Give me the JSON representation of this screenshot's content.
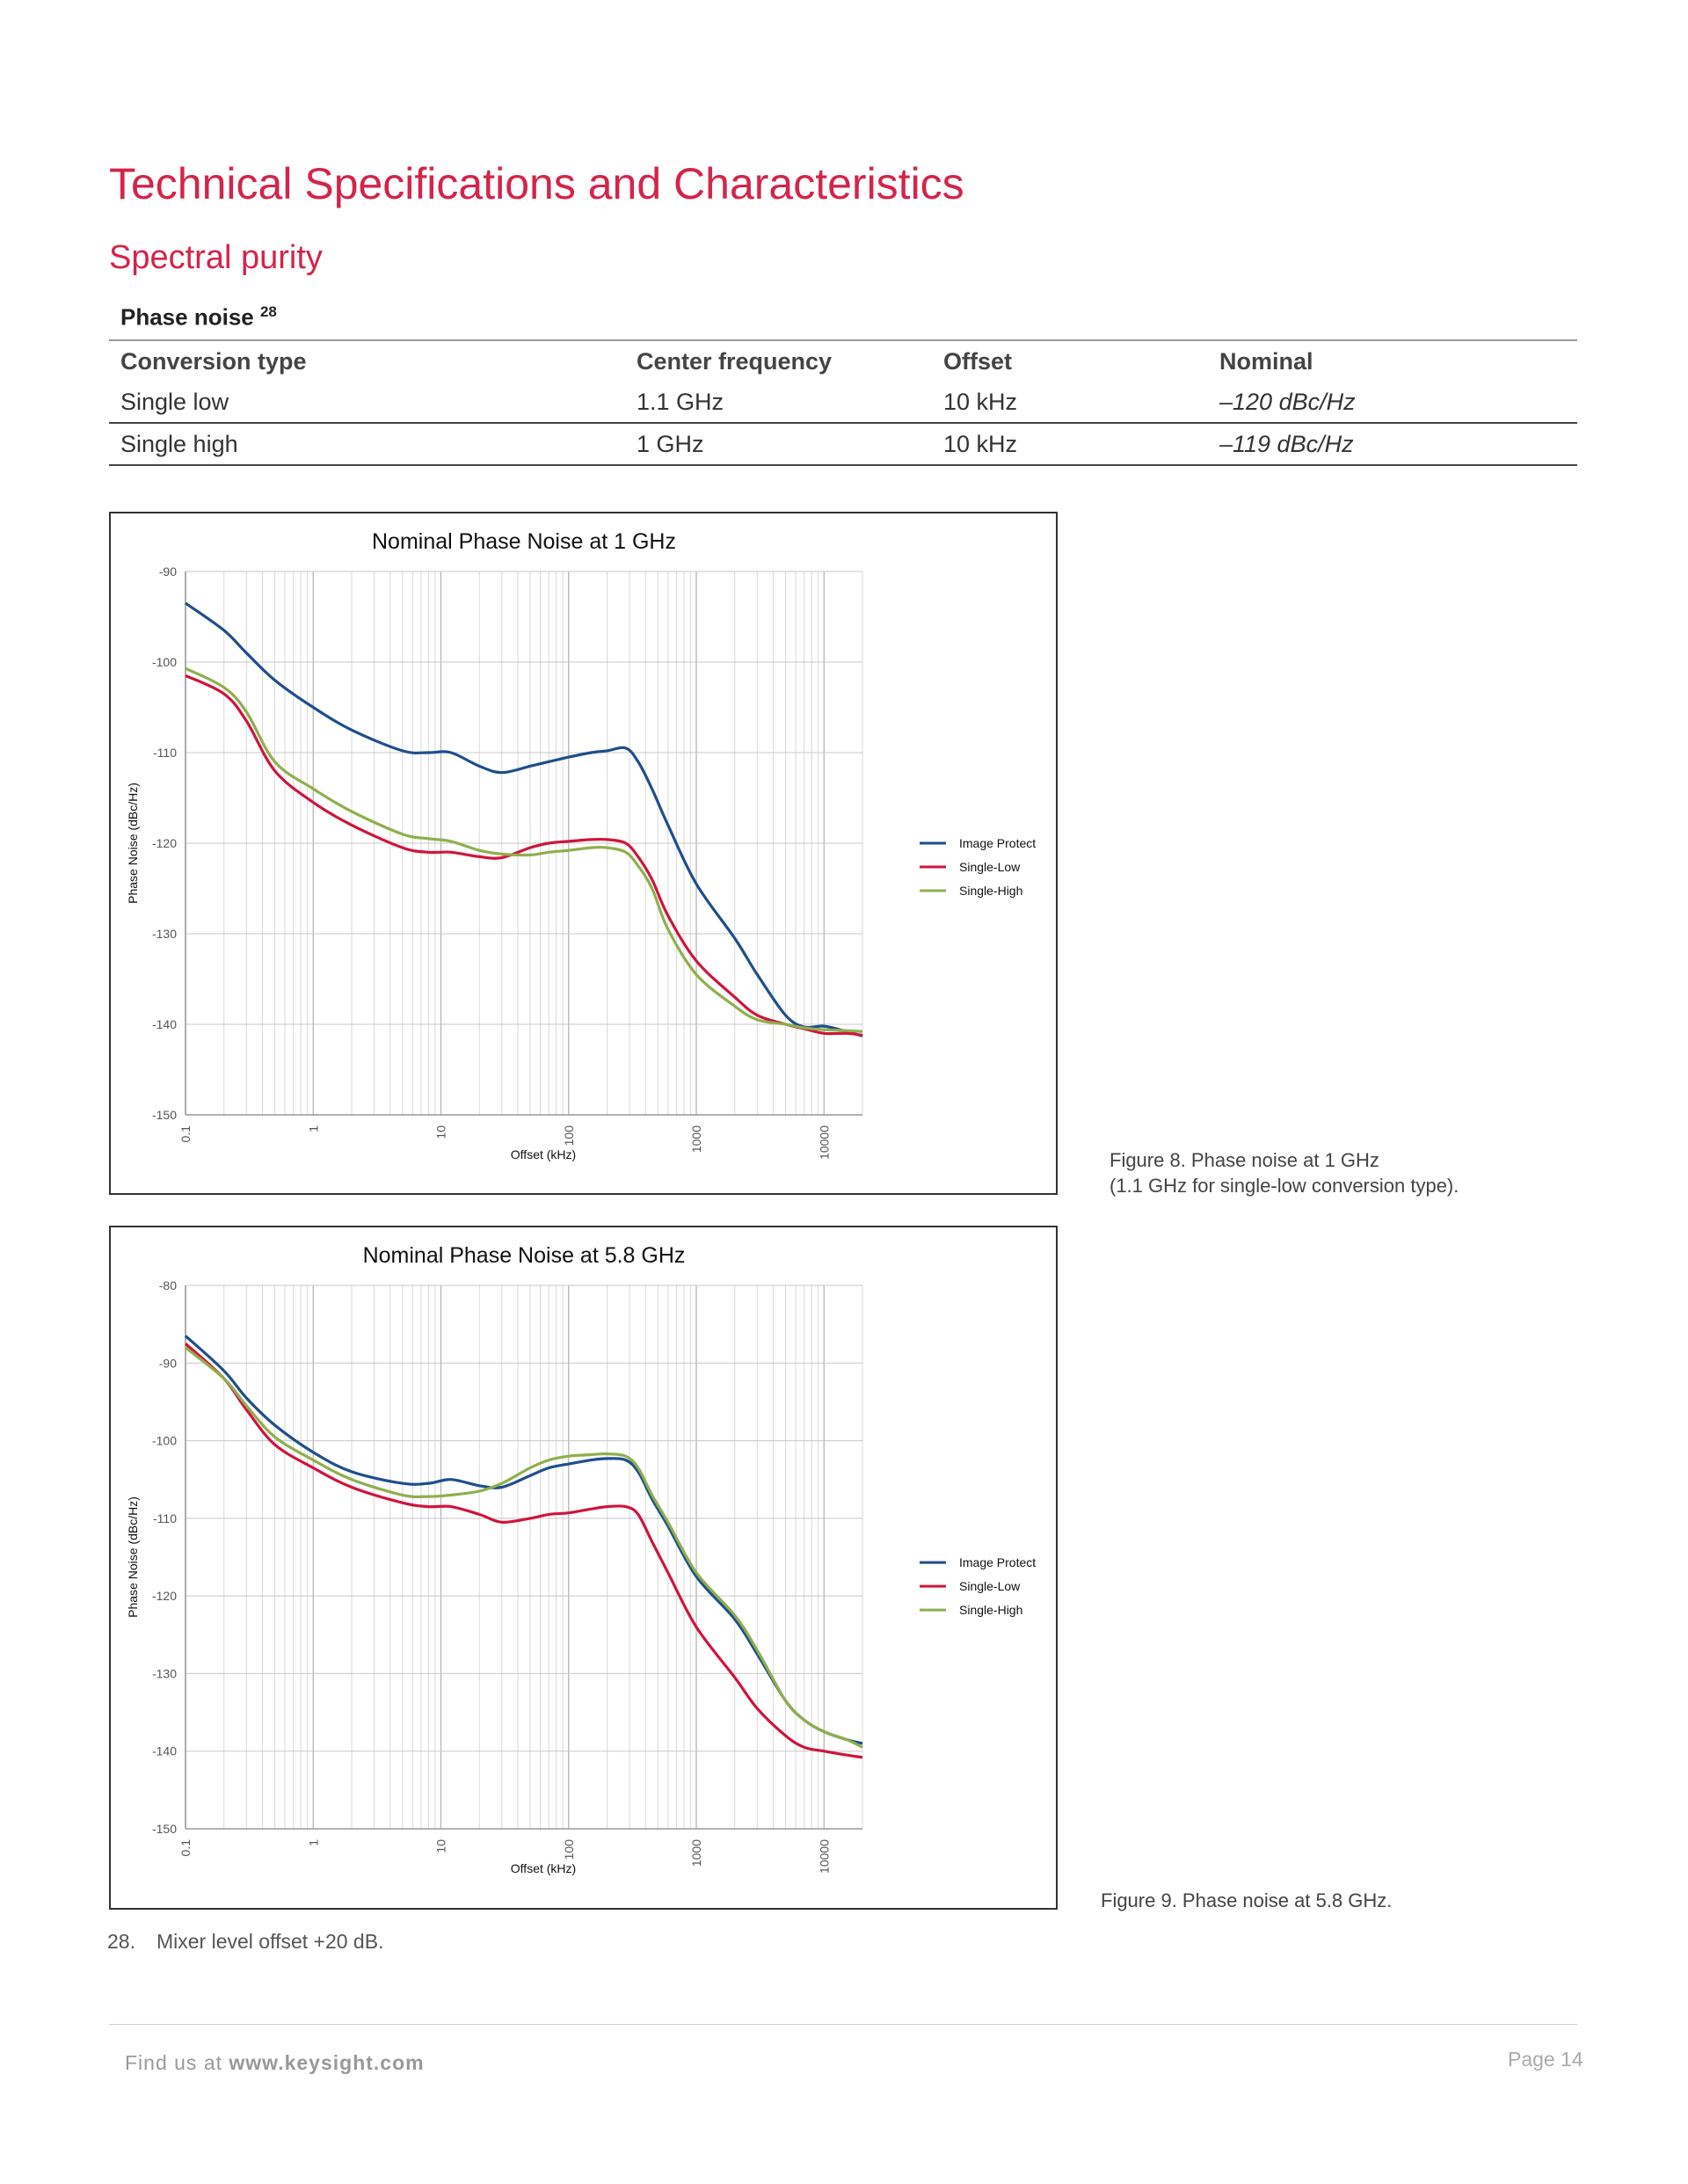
{
  "page": {
    "title": "Technical Specifications and Characteristics",
    "section": "Spectral purity"
  },
  "table": {
    "caption": "Phase noise",
    "caption_sup": "28",
    "headers": [
      "Conversion type",
      "Center frequency",
      "Offset",
      "Nominal"
    ],
    "rows": [
      [
        "Single low",
        "1.1 GHz",
        "10 kHz",
        "–120 dBc/Hz"
      ],
      [
        "Single high",
        "1 GHz",
        "10 kHz",
        "–119 dBc/Hz"
      ]
    ]
  },
  "colors": {
    "accent": "#d4244a",
    "image_protect": "#1f4e8c",
    "single_low": "#d0143c",
    "single_high": "#8faf4c"
  },
  "chart_data": [
    {
      "type": "line",
      "title": "Nominal Phase Noise at 1 GHz",
      "xlabel": "Offset (kHz)",
      "ylabel": "Phase Noise (dBc/Hz)",
      "x_scale": "log",
      "xlim": [
        0.1,
        20000
      ],
      "ylim": [
        -150,
        -90
      ],
      "xticks": [
        "0.1",
        "1",
        "10",
        "100",
        "1000",
        "10000"
      ],
      "yticks": [
        "-90",
        "-100",
        "-110",
        "-120",
        "-130",
        "-140",
        "-150"
      ],
      "grid": true,
      "legend": "right",
      "series": [
        {
          "name": "Image Protect",
          "x": [
            0.1,
            0.2,
            0.3,
            0.5,
            1,
            2,
            5,
            8,
            12,
            20,
            30,
            50,
            70,
            100,
            150,
            200,
            280,
            350,
            450,
            600,
            1000,
            2000,
            3000,
            5000,
            7000,
            10000,
            15000,
            20000
          ],
          "y": [
            -93.5,
            -96.5,
            -99,
            -102,
            -105,
            -107.5,
            -109.8,
            -110,
            -110,
            -111.5,
            -112.2,
            -111.5,
            -111,
            -110.5,
            -110,
            -109.8,
            -109.5,
            -111,
            -114,
            -118,
            -124.5,
            -130.5,
            -134.5,
            -139,
            -140.3,
            -140.2,
            -140.8,
            -141.3
          ]
        },
        {
          "name": "Single-Low",
          "x": [
            0.1,
            0.2,
            0.3,
            0.5,
            1,
            2,
            5,
            8,
            12,
            20,
            30,
            50,
            70,
            100,
            150,
            200,
            280,
            350,
            450,
            600,
            1000,
            2000,
            3000,
            5000,
            7000,
            10000,
            15000,
            20000
          ],
          "y": [
            -101.5,
            -103.5,
            -106.5,
            -112,
            -115.5,
            -118,
            -120.5,
            -121,
            -121,
            -121.5,
            -121.6,
            -120.5,
            -120,
            -119.8,
            -119.6,
            -119.6,
            -120,
            -121.5,
            -124,
            -128,
            -133,
            -137,
            -139,
            -140,
            -140.5,
            -141,
            -141,
            -141.2
          ]
        },
        {
          "name": "Single-High",
          "x": [
            0.1,
            0.2,
            0.3,
            0.5,
            1,
            2,
            5,
            8,
            12,
            20,
            30,
            50,
            70,
            100,
            150,
            200,
            280,
            350,
            450,
            600,
            1000,
            2000,
            3000,
            5000,
            7000,
            10000,
            15000,
            20000
          ],
          "y": [
            -100.7,
            -102.8,
            -105.5,
            -111,
            -114,
            -116.5,
            -119,
            -119.5,
            -119.8,
            -120.8,
            -121.2,
            -121.3,
            -121,
            -120.8,
            -120.5,
            -120.5,
            -121,
            -122.5,
            -125,
            -129.5,
            -134.5,
            -138,
            -139.5,
            -140,
            -140.4,
            -140.6,
            -140.7,
            -140.8
          ]
        }
      ]
    },
    {
      "type": "line",
      "title": "Nominal Phase Noise at 5.8 GHz",
      "xlabel": "Offset (kHz)",
      "ylabel": "Phase Noise (dBc/Hz)",
      "x_scale": "log",
      "xlim": [
        0.1,
        20000
      ],
      "ylim": [
        -150,
        -80
      ],
      "xticks": [
        "0.1",
        "1",
        "10",
        "100",
        "1000",
        "10000"
      ],
      "yticks": [
        "-80",
        "-90",
        "-100",
        "-110",
        "-120",
        "-130",
        "-140",
        "-150"
      ],
      "grid": true,
      "legend": "right",
      "series": [
        {
          "name": "Image Protect",
          "x": [
            0.1,
            0.2,
            0.3,
            0.5,
            1,
            2,
            5,
            8,
            12,
            20,
            30,
            50,
            70,
            100,
            150,
            200,
            280,
            350,
            450,
            600,
            1000,
            2000,
            3000,
            5000,
            7000,
            10000,
            15000,
            20000
          ],
          "y": [
            -86.5,
            -91,
            -94.5,
            -98,
            -101.5,
            -104,
            -105.5,
            -105.5,
            -105,
            -105.8,
            -106,
            -104.5,
            -103.5,
            -103,
            -102.5,
            -102.3,
            -102.5,
            -104,
            -107.5,
            -111,
            -117.5,
            -123,
            -127.5,
            -133.5,
            -136,
            -137.5,
            -138.5,
            -139
          ]
        },
        {
          "name": "Single-Low",
          "x": [
            0.1,
            0.2,
            0.3,
            0.5,
            1,
            2,
            5,
            8,
            12,
            20,
            30,
            50,
            70,
            100,
            150,
            200,
            280,
            350,
            450,
            600,
            1000,
            2000,
            3000,
            5000,
            7000,
            10000,
            15000,
            20000
          ],
          "y": [
            -87.5,
            -92,
            -96,
            -100.5,
            -103.5,
            -106,
            -108,
            -108.5,
            -108.5,
            -109.5,
            -110.5,
            -110,
            -109.5,
            -109.3,
            -108.8,
            -108.5,
            -108.5,
            -109.5,
            -113,
            -117,
            -124,
            -130.5,
            -134.5,
            -138,
            -139.5,
            -140,
            -140.5,
            -140.8
          ]
        },
        {
          "name": "Single-High",
          "x": [
            0.1,
            0.2,
            0.3,
            0.5,
            1,
            2,
            5,
            8,
            12,
            20,
            30,
            50,
            70,
            100,
            150,
            200,
            280,
            350,
            450,
            600,
            1000,
            2000,
            3000,
            5000,
            7000,
            10000,
            15000,
            20000
          ],
          "y": [
            -88,
            -92,
            -95.5,
            -99.5,
            -102.5,
            -105,
            -107,
            -107.2,
            -107,
            -106.5,
            -105.5,
            -103.5,
            -102.5,
            -102,
            -101.8,
            -101.7,
            -102,
            -103.5,
            -107,
            -110.5,
            -117,
            -122.5,
            -127,
            -133.5,
            -136,
            -137.5,
            -138.5,
            -139.5
          ]
        }
      ]
    }
  ],
  "captions": {
    "figure8_line1": "Figure 8. Phase noise at 1 GHz",
    "figure8_line2": "(1.1 GHz for single-low conversion type).",
    "figure9": "Figure 9. Phase noise at 5.8 GHz."
  },
  "footnote": {
    "number": "28.",
    "text": "Mixer level offset +20 dB."
  },
  "footer": {
    "prefix": "Find us at",
    "url": "www.keysight.com",
    "page": "Page 14"
  }
}
